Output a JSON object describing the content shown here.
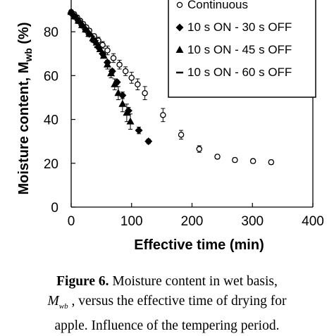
{
  "chart_data": {
    "type": "scatter",
    "xlabel": "Effective time (min)",
    "ylabel_main": "Moisture content, M",
    "ylabel_sub": "wb",
    "ylabel_unit": " (%)",
    "xlim": [
      0,
      400
    ],
    "ylim": [
      0,
      90
    ],
    "x_ticks": [
      0,
      100,
      200,
      300,
      400
    ],
    "y_ticks": [
      0,
      20,
      40,
      60,
      80
    ],
    "grid": false,
    "legend_placement": "top-right",
    "series": [
      {
        "name": "Continuous",
        "marker": "open-circle",
        "x": [
          0,
          5,
          10,
          15,
          20,
          25,
          30,
          38,
          45,
          52,
          60,
          70,
          80,
          90,
          100,
          110,
          122,
          152,
          182,
          212,
          242,
          271,
          301,
          331
        ],
        "y": [
          89,
          88,
          86.5,
          85,
          83.5,
          82,
          80.5,
          78,
          76,
          74,
          71.5,
          68,
          65,
          62,
          59,
          56,
          52,
          42,
          33,
          26.5,
          23,
          21.5,
          21,
          20.5
        ],
        "yerr": [
          1,
          1,
          1,
          1,
          1,
          1,
          1,
          1,
          1.5,
          1.5,
          2,
          2,
          2,
          2,
          2.5,
          2.5,
          3,
          3,
          2,
          1.5,
          1,
          1,
          1,
          1
        ]
      },
      {
        "name": "10 s ON - 30 s OFF",
        "marker": "diamond",
        "x": [
          0,
          6,
          12,
          18,
          24,
          30,
          38,
          45,
          52,
          60,
          68,
          76,
          85,
          95,
          112,
          128
        ],
        "y": [
          88.5,
          87,
          85,
          83,
          81,
          79,
          76,
          73,
          70,
          66,
          62,
          57,
          51,
          44,
          35,
          30
        ],
        "yerr": [
          0.5,
          0.5,
          0.5,
          0.5,
          0.5,
          0.5,
          1,
          1,
          1,
          1,
          1,
          1,
          1.5,
          1.5,
          1.5,
          1
        ]
      },
      {
        "name": "10 s ON - 45 s OFF",
        "marker": "triangle",
        "x": [
          0,
          6,
          12,
          18,
          24,
          30,
          36,
          42,
          48,
          54,
          60,
          66,
          72,
          78,
          85,
          92,
          98
        ],
        "y": [
          89,
          87,
          85,
          83,
          81,
          79,
          77,
          75,
          72,
          69,
          65,
          61,
          56,
          52,
          47,
          43,
          39
        ],
        "yerr": [
          0.5,
          0.5,
          0.5,
          0.5,
          0.5,
          0.5,
          1,
          1,
          1,
          1,
          2,
          2,
          2.5,
          3,
          3.5,
          4,
          3.5
        ]
      },
      {
        "name": "10 s ON - 60 s OFF",
        "marker": "dash",
        "x": [
          2,
          8,
          14,
          20,
          26,
          32,
          38,
          44
        ],
        "y": [
          88,
          86,
          84,
          82,
          80,
          78,
          75.5,
          73
        ]
      }
    ]
  },
  "caption": {
    "figure_label": "Figure 6.",
    "text_part1": " Moisture content in wet basis,",
    "symbol_main": "M",
    "symbol_sub": "wb",
    "text_part2": " , versus the effective time of drying for",
    "text_part3": "apple. Influence of the tempering period."
  }
}
